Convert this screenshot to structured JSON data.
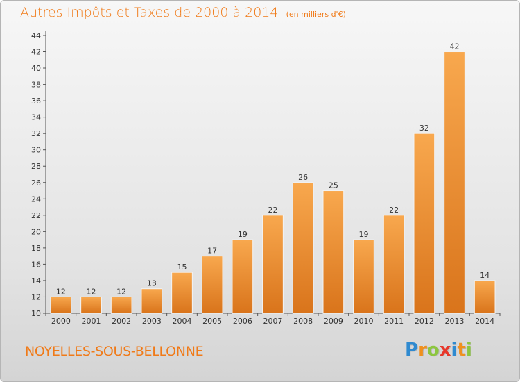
{
  "title": "Autres Impôts et Taxes de 2000 à 2014",
  "subtitle": "(en milliers d'€)",
  "commune": "NOYELLES-SOUS-BELLONNE",
  "logo": {
    "letters": [
      "P",
      "r",
      "o",
      "x",
      "i",
      "t",
      "i"
    ],
    "colors": [
      "#2f8ad0",
      "#f0901e",
      "#8cc63f",
      "#e8372a",
      "#2f8ad0",
      "#f0901e",
      "#8cc63f"
    ]
  },
  "colors": {
    "bar_light": "#f8a84e",
    "bar_dark": "#d9741b",
    "accent": "#f07a18",
    "axis": "#555555"
  },
  "chart_data": {
    "type": "bar",
    "title": "Autres Impôts et Taxes de 2000 à 2014",
    "subtitle": "(en milliers d'€)",
    "categories": [
      "2000",
      "2001",
      "2002",
      "2003",
      "2004",
      "2005",
      "2006",
      "2007",
      "2008",
      "2009",
      "2010",
      "2011",
      "2012",
      "2013",
      "2014"
    ],
    "values": [
      12,
      12,
      12,
      13,
      15,
      17,
      19,
      22,
      26,
      25,
      19,
      22,
      32,
      42,
      14
    ],
    "ylim": [
      10,
      44
    ],
    "yticks": [
      10,
      12,
      14,
      16,
      18,
      20,
      22,
      24,
      26,
      28,
      30,
      32,
      34,
      36,
      38,
      40,
      42,
      44
    ],
    "grid": false,
    "legend": "none"
  }
}
